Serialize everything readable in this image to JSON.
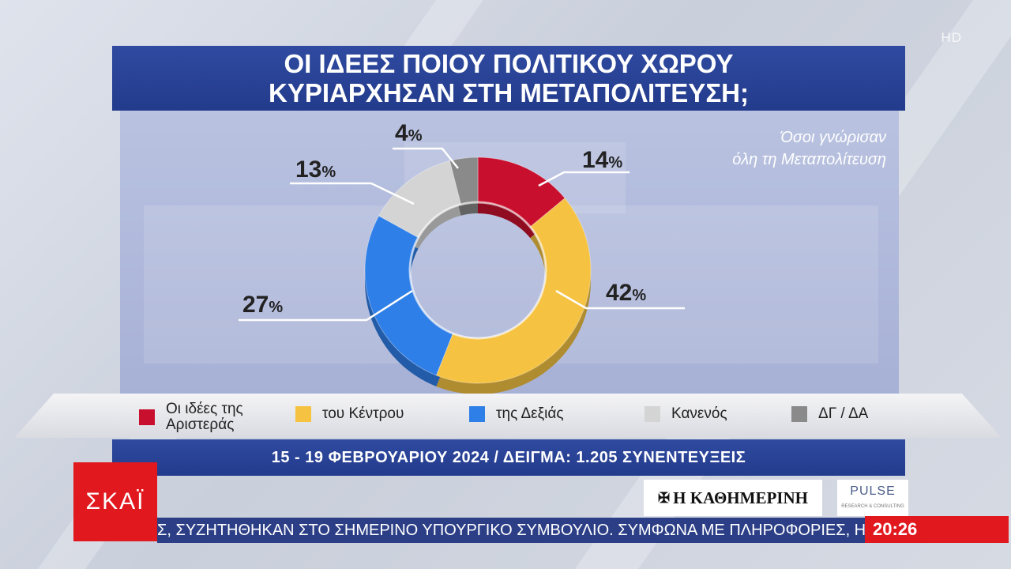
{
  "title": {
    "line1": "ΟΙ ΙΔΕΕΣ ΠΟΙΟΥ ΠΟΛΙΤΙΚΟΥ ΧΩΡΟΥ",
    "line2": "ΚΥΡΙΑΡΧΗΣΑΝ ΣΤΗ ΜΕΤΑΠΟΛΙΤΕΥΣΗ;"
  },
  "subtitle": {
    "line1": "Όσοι γνώρισαν",
    "line2": "όλη τη Μεταπολίτευση"
  },
  "hd_badge": "HD",
  "chart_data": {
    "type": "pie",
    "donut": true,
    "title": "ΟΙ ΙΔΕΕΣ ΠΟΙΟΥ ΠΟΛΙΤΙΚΟΥ ΧΩΡΟΥ ΚΥΡΙΑΡΧΗΣΑΝ ΣΤΗ ΜΕΤΑΠΟΛΙΤΕΥΣΗ;",
    "unit": "%",
    "legend_position": "bottom",
    "categories": [
      "Οι ιδέες της Αριστεράς",
      "του Κέντρου",
      "της Δεξιάς",
      "Κανενός",
      "ΔΓ / ΔΑ"
    ],
    "values": [
      14,
      42,
      27,
      13,
      4
    ],
    "colors": [
      "#c8102e",
      "#f5c242",
      "#2f7fe8",
      "#d4d4d4",
      "#8a8a8a"
    ]
  },
  "legend": {
    "items": [
      {
        "line1": "Οι ιδέες της",
        "line2": "Αριστεράς"
      },
      {
        "line1": "του Κέντρου",
        "line2": ""
      },
      {
        "line1": "της Δεξιάς",
        "line2": ""
      },
      {
        "line1": "Κανενός",
        "line2": ""
      },
      {
        "line1": "ΔΓ / ΔΑ",
        "line2": ""
      }
    ]
  },
  "date_bar": "15 - 19 ΦΕΒΡΟΥΑΡΙΟΥ 2024 / ΔΕΙΓΜΑ: 1.205 ΣΥΝΕΝΤΕΥΞΕΙΣ",
  "channel_logo": "ΣΚΑΪ",
  "partner_logos": {
    "newspaper": "Η ΚΑΘΗΜΕΡΙΝΗ",
    "pollster": "PULSE",
    "pollster_sub": "RESEARCH & CONSULTING"
  },
  "ticker": "Σ, ΣΥΖΗΤΗΘΗΚΑΝ ΣΤΟ ΣΗΜΕΡΙΝΟ ΥΠΟΥΡΓΙΚΟ ΣΥΜΒΟΥΛΙΟ. ΣΥΜΦΩΝΑ ΜΕ ΠΛΗΡΟΦΟΡΙΕΣ, Η Μ",
  "clock": "20:26"
}
